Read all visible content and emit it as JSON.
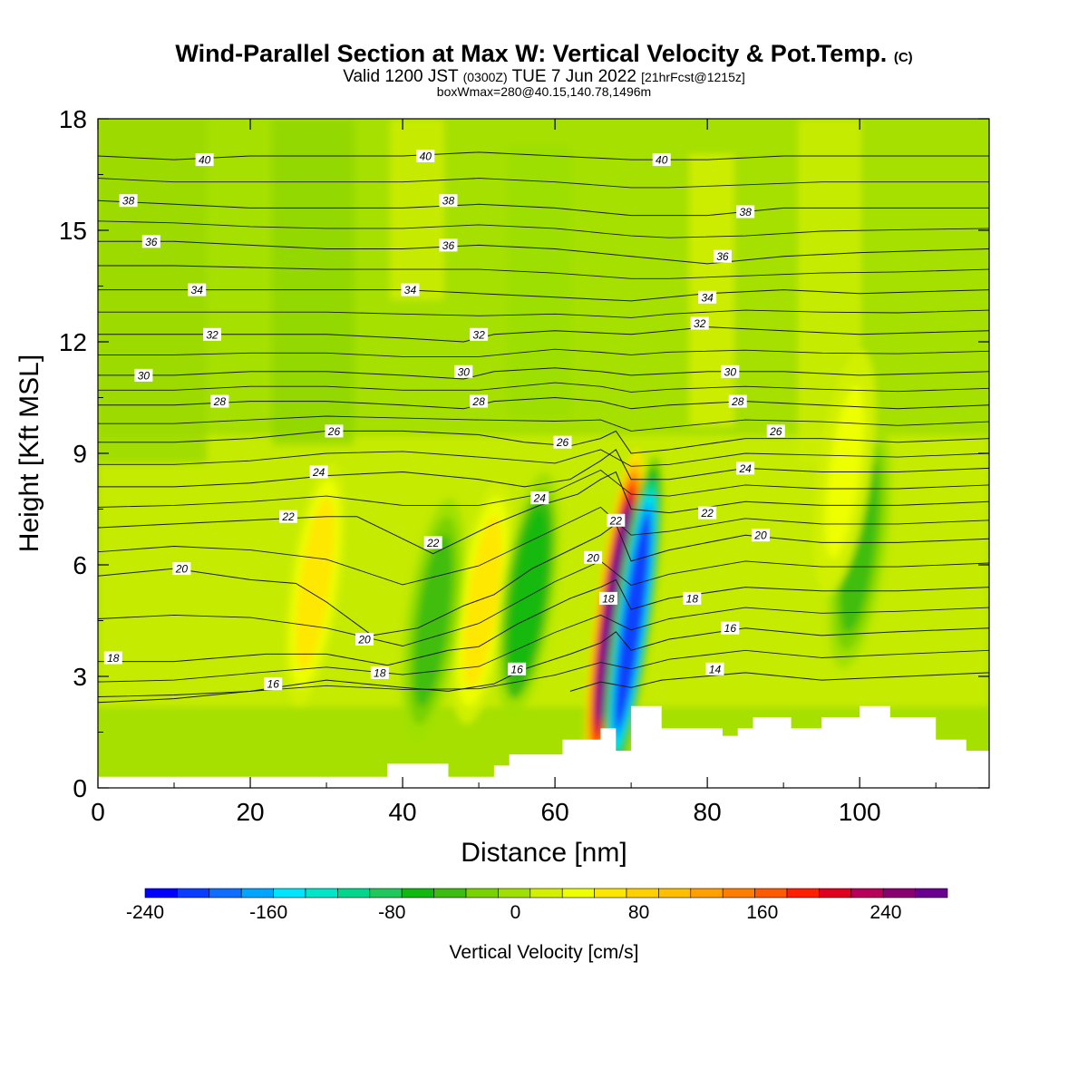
{
  "title_main": "Wind-Parallel Section at Max W: Vertical Velocity & Pot.Temp.",
  "title_mark": "(C)",
  "sub_a": "Valid 1200 JST",
  "sub_b": "(0300Z)",
  "sub_c": "TUE 7 Jun 2022",
  "sub_d": "[21hrFcst@1215z]",
  "sub_line2": "boxWmax=280@40.15,140.78,1496m",
  "chart_data": {
    "type": "heatmap",
    "xlabel": "Distance [nm]",
    "ylabel": "Height [Kft MSL]",
    "xlim": [
      0,
      117
    ],
    "ylim": [
      0,
      18
    ],
    "x_ticks": [
      "0",
      "20",
      "40",
      "60",
      "80",
      "100"
    ],
    "y_ticks": [
      "0",
      "3",
      "6",
      "9",
      "12",
      "15",
      "18"
    ],
    "colorbar": {
      "label": "Vertical Velocity [cm/s]",
      "tick_labels": [
        "-240",
        "-160",
        "-80",
        "0",
        "80",
        "160",
        "240"
      ],
      "colors": [
        "#0000ff",
        "#0a3dff",
        "#0f6eff",
        "#00a5ff",
        "#00e5ff",
        "#00e6c8",
        "#00d68c",
        "#1ec85a",
        "#10b810",
        "#3cbc10",
        "#78d200",
        "#a0e000",
        "#d2f000",
        "#eeff00",
        "#ffe600",
        "#ffd000",
        "#ffbe00",
        "#ffa000",
        "#ff7d00",
        "#ff5a00",
        "#ff1e00",
        "#e00020",
        "#b8005a",
        "#8a0070",
        "#6a0090"
      ]
    },
    "terrain": [
      [
        0,
        0.3
      ],
      [
        10,
        0.3
      ],
      [
        20,
        0.3
      ],
      [
        30,
        0.3
      ],
      [
        37.5,
        0.3
      ],
      [
        38,
        0.65
      ],
      [
        45,
        0.65
      ],
      [
        46,
        0.3
      ],
      [
        51,
        0.3
      ],
      [
        52,
        0.6
      ],
      [
        54,
        0.9
      ],
      [
        60,
        0.9
      ],
      [
        61,
        1.3
      ],
      [
        64,
        1.3
      ],
      [
        66,
        1.6
      ],
      [
        67.5,
        1.6
      ],
      [
        68,
        1.0
      ],
      [
        69,
        1.0
      ],
      [
        70,
        2.2
      ],
      [
        73,
        2.2
      ],
      [
        74,
        1.6
      ],
      [
        80,
        1.6
      ],
      [
        82,
        1.4
      ],
      [
        84,
        1.6
      ],
      [
        85,
        1.6
      ],
      [
        86,
        1.9
      ],
      [
        89,
        1.9
      ],
      [
        91,
        1.6
      ],
      [
        94,
        1.6
      ],
      [
        95,
        1.9
      ],
      [
        99,
        1.9
      ],
      [
        100,
        2.2
      ],
      [
        103,
        2.2
      ],
      [
        104,
        1.9
      ],
      [
        108,
        1.9
      ],
      [
        110,
        1.3
      ],
      [
        113,
        1.3
      ],
      [
        114,
        1.0
      ],
      [
        117,
        1.0
      ]
    ],
    "theta_contours": [
      {
        "label": "14",
        "points": [
          [
            62,
            2.6
          ],
          [
            66,
            2.85
          ],
          [
            70,
            2.7
          ],
          [
            74,
            2.9
          ],
          [
            85,
            3.1
          ],
          [
            95,
            2.9
          ],
          [
            117,
            3.1
          ]
        ]
      },
      {
        "label": "16",
        "points": [
          [
            0,
            2.3
          ],
          [
            10,
            2.4
          ],
          [
            20,
            2.6
          ],
          [
            30,
            2.9
          ],
          [
            40,
            2.7
          ],
          [
            46,
            2.6
          ],
          [
            52,
            2.8
          ],
          [
            56,
            3.2
          ],
          [
            62,
            3.6
          ],
          [
            66,
            3.9
          ],
          [
            68,
            4.2
          ],
          [
            70,
            3.7
          ],
          [
            75,
            4.0
          ],
          [
            85,
            4.3
          ],
          [
            95,
            4.1
          ],
          [
            105,
            4.2
          ],
          [
            117,
            4.3
          ]
        ]
      },
      {
        "label": "18",
        "points": [
          [
            0,
            3.4
          ],
          [
            10,
            3.4
          ],
          [
            22,
            3.6
          ],
          [
            30,
            3.6
          ],
          [
            38,
            3.3
          ],
          [
            46,
            3.7
          ],
          [
            50,
            3.8
          ],
          [
            55,
            4.4
          ],
          [
            62,
            5.1
          ],
          [
            66,
            5.4
          ],
          [
            68,
            5.6
          ],
          [
            70,
            4.8
          ],
          [
            75,
            5.1
          ],
          [
            85,
            5.4
          ],
          [
            95,
            5.3
          ],
          [
            105,
            5.3
          ],
          [
            117,
            5.4
          ]
        ]
      },
      {
        "label": "20",
        "points": [
          [
            0,
            5.7
          ],
          [
            10,
            5.9
          ],
          [
            20,
            5.6
          ],
          [
            26,
            5.5
          ],
          [
            30,
            5.0
          ],
          [
            36,
            4.1
          ],
          [
            42,
            4.3
          ],
          [
            48,
            4.9
          ],
          [
            52,
            5.2
          ],
          [
            57,
            5.9
          ],
          [
            63,
            6.5
          ],
          [
            66,
            6.8
          ],
          [
            68,
            7.1
          ],
          [
            70,
            6.1
          ],
          [
            75,
            6.4
          ],
          [
            85,
            6.8
          ],
          [
            95,
            6.6
          ],
          [
            105,
            6.6
          ],
          [
            117,
            6.7
          ]
        ]
      },
      {
        "label": "22",
        "points": [
          [
            0,
            7.0
          ],
          [
            10,
            7.1
          ],
          [
            20,
            7.2
          ],
          [
            30,
            7.3
          ],
          [
            34,
            7.3
          ],
          [
            38,
            6.9
          ],
          [
            44,
            6.3
          ],
          [
            48,
            6.7
          ],
          [
            52,
            7.1
          ],
          [
            58,
            7.6
          ],
          [
            63,
            7.9
          ],
          [
            66,
            8.3
          ],
          [
            68,
            8.5
          ],
          [
            70,
            7.5
          ],
          [
            75,
            7.4
          ],
          [
            85,
            7.7
          ],
          [
            95,
            7.6
          ],
          [
            105,
            7.6
          ],
          [
            117,
            7.7
          ]
        ]
      },
      {
        "label": "24",
        "points": [
          [
            0,
            8.1
          ],
          [
            10,
            8.1
          ],
          [
            20,
            8.2
          ],
          [
            30,
            8.4
          ],
          [
            40,
            8.5
          ],
          [
            50,
            8.3
          ],
          [
            56,
            8.1
          ],
          [
            62,
            8.3
          ],
          [
            66,
            8.8
          ],
          [
            68,
            9.1
          ],
          [
            70,
            8.3
          ],
          [
            75,
            8.3
          ],
          [
            85,
            8.6
          ],
          [
            95,
            8.5
          ],
          [
            105,
            8.5
          ],
          [
            117,
            8.6
          ]
        ]
      },
      {
        "label": "26",
        "points": [
          [
            0,
            9.3
          ],
          [
            10,
            9.3
          ],
          [
            20,
            9.4
          ],
          [
            30,
            9.6
          ],
          [
            40,
            9.6
          ],
          [
            50,
            9.5
          ],
          [
            56,
            9.3
          ],
          [
            62,
            9.2
          ],
          [
            66,
            9.4
          ],
          [
            68,
            9.6
          ],
          [
            70,
            9.0
          ],
          [
            75,
            9.1
          ],
          [
            85,
            9.4
          ],
          [
            95,
            9.4
          ],
          [
            105,
            9.3
          ],
          [
            117,
            9.4
          ]
        ]
      },
      {
        "label": "28",
        "points": [
          [
            0,
            10.3
          ],
          [
            10,
            10.3
          ],
          [
            20,
            10.4
          ],
          [
            30,
            10.4
          ],
          [
            40,
            10.3
          ],
          [
            48,
            10.2
          ],
          [
            52,
            10.4
          ],
          [
            60,
            10.5
          ],
          [
            66,
            10.4
          ],
          [
            70,
            10.2
          ],
          [
            75,
            10.3
          ],
          [
            85,
            10.4
          ],
          [
            95,
            10.3
          ],
          [
            105,
            10.2
          ],
          [
            117,
            10.3
          ]
        ]
      },
      {
        "label": "30",
        "points": [
          [
            0,
            11.1
          ],
          [
            10,
            11.1
          ],
          [
            20,
            11.2
          ],
          [
            30,
            11.2
          ],
          [
            40,
            11.1
          ],
          [
            48,
            11.0
          ],
          [
            52,
            11.2
          ],
          [
            60,
            11.3
          ],
          [
            66,
            11.2
          ],
          [
            70,
            11.1
          ],
          [
            80,
            11.2
          ],
          [
            90,
            11.2
          ],
          [
            100,
            11.1
          ],
          [
            117,
            11.2
          ]
        ]
      },
      {
        "label": "32",
        "points": [
          [
            0,
            12.2
          ],
          [
            10,
            12.2
          ],
          [
            20,
            12.2
          ],
          [
            30,
            12.2
          ],
          [
            40,
            12.1
          ],
          [
            48,
            12.0
          ],
          [
            52,
            12.2
          ],
          [
            60,
            12.3
          ],
          [
            70,
            12.2
          ],
          [
            80,
            12.4
          ],
          [
            90,
            12.3
          ],
          [
            100,
            12.2
          ],
          [
            117,
            12.3
          ]
        ]
      },
      {
        "label": "34",
        "points": [
          [
            0,
            13.4
          ],
          [
            10,
            13.4
          ],
          [
            20,
            13.4
          ],
          [
            30,
            13.4
          ],
          [
            40,
            13.4
          ],
          [
            50,
            13.3
          ],
          [
            60,
            13.2
          ],
          [
            70,
            13.1
          ],
          [
            80,
            13.3
          ],
          [
            90,
            13.4
          ],
          [
            100,
            13.3
          ],
          [
            117,
            13.4
          ]
        ]
      },
      {
        "label": "36",
        "points": [
          [
            0,
            14.7
          ],
          [
            10,
            14.7
          ],
          [
            20,
            14.6
          ],
          [
            30,
            14.5
          ],
          [
            40,
            14.5
          ],
          [
            50,
            14.6
          ],
          [
            60,
            14.5
          ],
          [
            70,
            14.3
          ],
          [
            80,
            14.1
          ],
          [
            90,
            14.3
          ],
          [
            100,
            14.4
          ],
          [
            117,
            14.5
          ]
        ]
      },
      {
        "label": "38",
        "points": [
          [
            0,
            15.8
          ],
          [
            10,
            15.7
          ],
          [
            20,
            15.6
          ],
          [
            30,
            15.6
          ],
          [
            40,
            15.6
          ],
          [
            50,
            15.7
          ],
          [
            60,
            15.6
          ],
          [
            70,
            15.4
          ],
          [
            80,
            15.4
          ],
          [
            90,
            15.6
          ],
          [
            100,
            15.6
          ],
          [
            117,
            15.6
          ]
        ]
      },
      {
        "label": "40",
        "points": [
          [
            0,
            17.0
          ],
          [
            10,
            16.9
          ],
          [
            20,
            17.0
          ],
          [
            30,
            17.0
          ],
          [
            40,
            17.0
          ],
          [
            50,
            17.1
          ],
          [
            60,
            17.0
          ],
          [
            70,
            16.9
          ],
          [
            80,
            16.9
          ],
          [
            90,
            17.0
          ],
          [
            100,
            17.0
          ],
          [
            117,
            17.0
          ]
        ]
      }
    ],
    "contour_labels": [
      {
        "text": "40",
        "x": 14,
        "y": 16.9
      },
      {
        "text": "40",
        "x": 43,
        "y": 17.0
      },
      {
        "text": "40",
        "x": 74,
        "y": 16.9
      },
      {
        "text": "38",
        "x": 4,
        "y": 15.8
      },
      {
        "text": "38",
        "x": 46,
        "y": 15.8
      },
      {
        "text": "38",
        "x": 85,
        "y": 15.5
      },
      {
        "text": "36",
        "x": 7,
        "y": 14.7
      },
      {
        "text": "36",
        "x": 46,
        "y": 14.6
      },
      {
        "text": "36",
        "x": 82,
        "y": 14.3
      },
      {
        "text": "34",
        "x": 13,
        "y": 13.4
      },
      {
        "text": "34",
        "x": 41,
        "y": 13.4
      },
      {
        "text": "34",
        "x": 80,
        "y": 13.2
      },
      {
        "text": "32",
        "x": 15,
        "y": 12.2
      },
      {
        "text": "32",
        "x": 50,
        "y": 12.2
      },
      {
        "text": "32",
        "x": 79,
        "y": 12.5
      },
      {
        "text": "30",
        "x": 6,
        "y": 11.1
      },
      {
        "text": "30",
        "x": 48,
        "y": 11.2
      },
      {
        "text": "30",
        "x": 83,
        "y": 11.2
      },
      {
        "text": "28",
        "x": 16,
        "y": 10.4
      },
      {
        "text": "28",
        "x": 50,
        "y": 10.4
      },
      {
        "text": "28",
        "x": 84,
        "y": 10.4
      },
      {
        "text": "26",
        "x": 31,
        "y": 9.6
      },
      {
        "text": "26",
        "x": 61,
        "y": 9.3
      },
      {
        "text": "26",
        "x": 89,
        "y": 9.6
      },
      {
        "text": "24",
        "x": 29,
        "y": 8.5
      },
      {
        "text": "24",
        "x": 58,
        "y": 7.8
      },
      {
        "text": "24",
        "x": 85,
        "y": 8.6
      },
      {
        "text": "22",
        "x": 25,
        "y": 7.3
      },
      {
        "text": "22",
        "x": 44,
        "y": 6.6
      },
      {
        "text": "22",
        "x": 68,
        "y": 7.2
      },
      {
        "text": "22",
        "x": 80,
        "y": 7.4
      },
      {
        "text": "20",
        "x": 11,
        "y": 5.9
      },
      {
        "text": "20",
        "x": 35,
        "y": 4.0
      },
      {
        "text": "20",
        "x": 65,
        "y": 6.2
      },
      {
        "text": "20",
        "x": 87,
        "y": 6.8
      },
      {
        "text": "18",
        "x": 2,
        "y": 3.5
      },
      {
        "text": "18",
        "x": 37,
        "y": 3.1
      },
      {
        "text": "18",
        "x": 67,
        "y": 5.1
      },
      {
        "text": "18",
        "x": 78,
        "y": 5.1
      },
      {
        "text": "16",
        "x": 23,
        "y": 2.8
      },
      {
        "text": "16",
        "x": 55,
        "y": 3.2
      },
      {
        "text": "16",
        "x": 83,
        "y": 4.3
      },
      {
        "text": "14",
        "x": 81,
        "y": 3.2
      }
    ],
    "w_features": [
      {
        "x": 67.8,
        "y": 4.7,
        "value": 280
      },
      {
        "x": 70.2,
        "y": 4.5,
        "value": -240
      },
      {
        "x": 50.5,
        "y": 5.0,
        "value": 60
      },
      {
        "x": 56.5,
        "y": 5.2,
        "value": -70
      },
      {
        "x": 28.5,
        "y": 5.5,
        "value": 50
      },
      {
        "x": 44.0,
        "y": 4.5,
        "value": -50
      },
      {
        "x": 100.0,
        "y": 6.5,
        "value": -50
      },
      {
        "x": 98.0,
        "y": 8.5,
        "value": 30
      }
    ]
  }
}
